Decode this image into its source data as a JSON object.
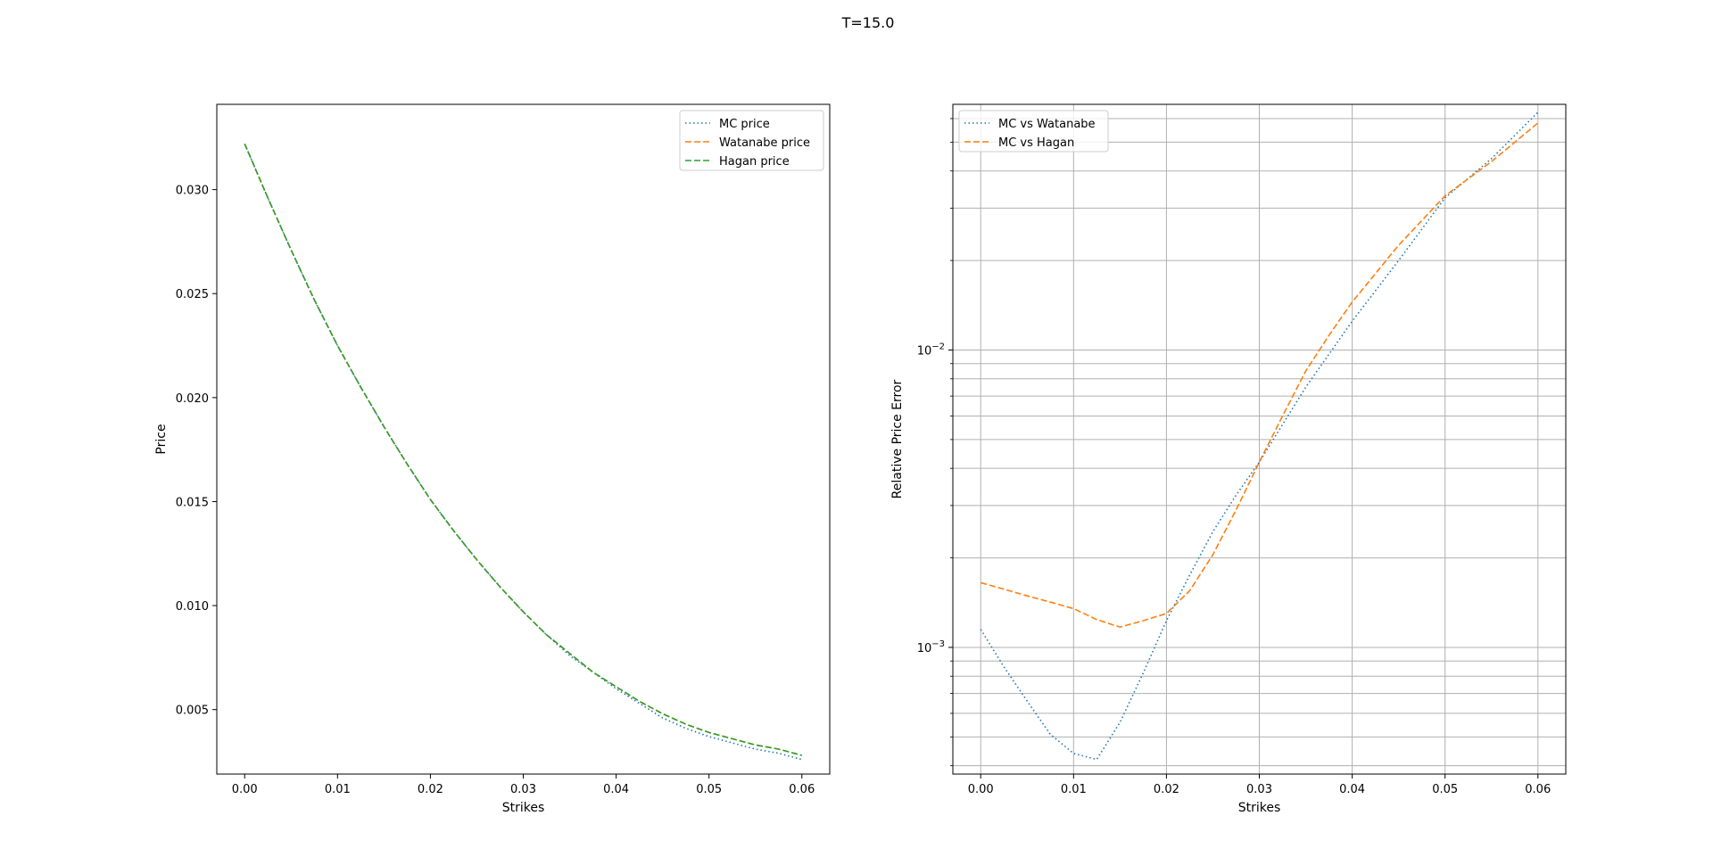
{
  "figure": {
    "suptitle": "T=15.0"
  },
  "colors": {
    "blue": "#1f77b4",
    "orange": "#ff7f0e",
    "green": "#2ca02c",
    "grid": "#b0b0b0"
  },
  "chart_data": [
    {
      "type": "line",
      "title": "",
      "xlabel": "Strikes",
      "ylabel": "Price",
      "xlim": [
        -0.003,
        0.063
      ],
      "ylim": [
        0.0019,
        0.0341
      ],
      "xticks": [
        0.0,
        0.01,
        0.02,
        0.03,
        0.04,
        0.05,
        0.06
      ],
      "xtick_labels": [
        "0.00",
        "0.01",
        "0.02",
        "0.03",
        "0.04",
        "0.05",
        "0.06"
      ],
      "yticks": [
        0.005,
        0.01,
        0.015,
        0.02,
        0.025,
        0.03
      ],
      "ytick_labels": [
        "0.005",
        "0.010",
        "0.015",
        "0.020",
        "0.025",
        "0.030"
      ],
      "grid": false,
      "legend": "upper right",
      "x": [
        0.0,
        0.0025,
        0.005,
        0.0075,
        0.01,
        0.0125,
        0.015,
        0.0175,
        0.02,
        0.0225,
        0.025,
        0.0275,
        0.03,
        0.0325,
        0.035,
        0.0375,
        0.04,
        0.0425,
        0.045,
        0.0475,
        0.05,
        0.0525,
        0.055,
        0.0575,
        0.06
      ],
      "series": [
        {
          "name": "MC price",
          "color": "#1f77b4",
          "dash": "1.5 3",
          "values": [
            0.0322,
            0.0296,
            0.0271,
            0.0247,
            0.0225,
            0.0205,
            0.0186,
            0.0168,
            0.0151,
            0.0136,
            0.0122,
            0.0109,
            0.0097,
            0.0086,
            0.0076,
            0.0068,
            0.006,
            0.0053,
            0.0046,
            0.0041,
            0.0037,
            0.0034,
            0.0031,
            0.0029,
            0.0026
          ]
        },
        {
          "name": "Watanabe price",
          "color": "#ff7f0e",
          "dash": "7 3",
          "values": [
            0.0322,
            0.0296,
            0.0271,
            0.0247,
            0.0225,
            0.0205,
            0.0186,
            0.0168,
            0.0151,
            0.0136,
            0.0122,
            0.0109,
            0.0097,
            0.0086,
            0.0077,
            0.0068,
            0.0061,
            0.0054,
            0.0048,
            0.0043,
            0.0039,
            0.0036,
            0.0033,
            0.0031,
            0.0028
          ]
        },
        {
          "name": "Hagan price",
          "color": "#2ca02c",
          "dash": "7 3",
          "values": [
            0.0322,
            0.0296,
            0.0271,
            0.0247,
            0.0225,
            0.0205,
            0.0186,
            0.0168,
            0.0151,
            0.0136,
            0.0122,
            0.0109,
            0.0097,
            0.0086,
            0.0077,
            0.0068,
            0.0061,
            0.0054,
            0.0048,
            0.0043,
            0.0039,
            0.0036,
            0.0033,
            0.0031,
            0.0028
          ]
        }
      ]
    },
    {
      "type": "line",
      "title": "",
      "xlabel": "Strikes",
      "ylabel": "Relative Price Error",
      "yscale": "log",
      "xlim": [
        -0.003,
        0.063
      ],
      "ylim": [
        0.000375,
        0.067
      ],
      "xticks": [
        0.0,
        0.01,
        0.02,
        0.03,
        0.04,
        0.05,
        0.06
      ],
      "xtick_labels": [
        "0.00",
        "0.01",
        "0.02",
        "0.03",
        "0.04",
        "0.05",
        "0.06"
      ],
      "yticks_major": [
        0.001,
        0.01
      ],
      "ytick_major_labels": [
        {
          "base": "10",
          "exp": "−3"
        },
        {
          "base": "10",
          "exp": "−2"
        }
      ],
      "yticks_minor": [
        0.0004,
        0.0005,
        0.0006,
        0.0007,
        0.0008,
        0.0009,
        0.002,
        0.003,
        0.004,
        0.005,
        0.006,
        0.007,
        0.008,
        0.009,
        0.02,
        0.03,
        0.04,
        0.05,
        0.06
      ],
      "grid": true,
      "legend": "upper left",
      "series": [
        {
          "name": "MC vs Watanabe",
          "color": "#1f77b4",
          "dash": "1.5 3",
          "x": [
            0.0,
            0.0025,
            0.005,
            0.0075,
            0.01,
            0.0125,
            0.015,
            0.0175,
            0.02,
            0.0225,
            0.025,
            0.0275,
            0.03,
            0.035,
            0.04,
            0.045,
            0.05,
            0.055,
            0.06
          ],
          "values": [
            0.00115,
            0.00086,
            0.00066,
            0.00051,
            0.00044,
            0.00042,
            0.00056,
            0.00082,
            0.00123,
            0.00175,
            0.00245,
            0.00325,
            0.0042,
            0.0075,
            0.0125,
            0.02,
            0.0325,
            0.044,
            0.063
          ]
        },
        {
          "name": "MC vs Hagan",
          "color": "#ff7f0e",
          "dash": "7 3",
          "x": [
            0.0,
            0.0025,
            0.005,
            0.0075,
            0.01,
            0.0125,
            0.015,
            0.0175,
            0.02,
            0.0225,
            0.025,
            0.0275,
            0.03,
            0.0325,
            0.035,
            0.0375,
            0.04,
            0.045,
            0.05,
            0.055,
            0.06
          ],
          "values": [
            0.00165,
            0.00157,
            0.00149,
            0.00142,
            0.00135,
            0.00124,
            0.00117,
            0.00123,
            0.0013,
            0.00155,
            0.00205,
            0.0029,
            0.0042,
            0.006,
            0.0085,
            0.0112,
            0.0145,
            0.0225,
            0.033,
            0.043,
            0.058
          ]
        }
      ]
    }
  ]
}
